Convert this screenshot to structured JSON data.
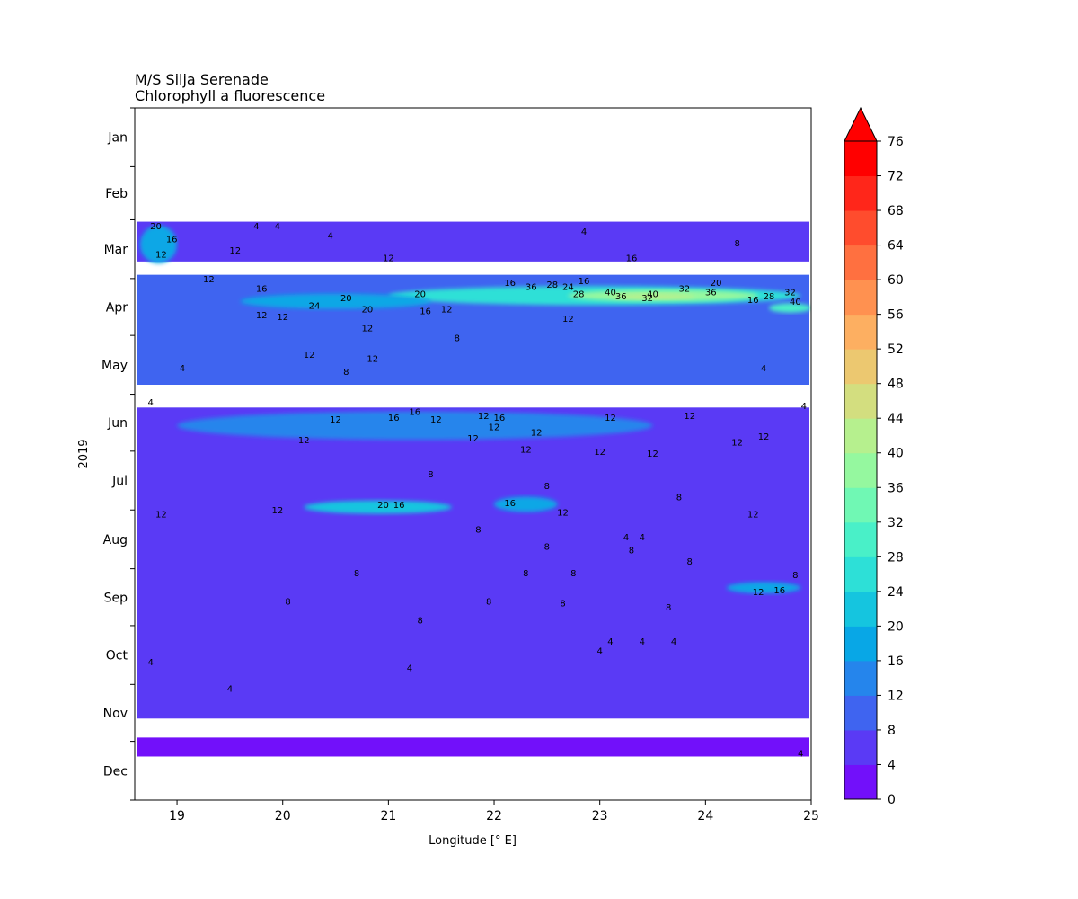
{
  "chart_data": {
    "type": "heatmap",
    "title": "M/S Silja Serenade",
    "subtitle": "Chlorophyll a fluorescence",
    "xlabel": "Longitude [° E]",
    "ylabel": "2019",
    "xlim": [
      18.6,
      25.0
    ],
    "x_ticks": [
      "19",
      "20",
      "21",
      "22",
      "23",
      "24",
      "25"
    ],
    "x_tick_values": [
      19,
      20,
      21,
      22,
      23,
      24,
      25
    ],
    "y_ticks": [
      "Jan",
      "Feb",
      "Mar",
      "Apr",
      "May",
      "Jun",
      "Jul",
      "Aug",
      "Sep",
      "Oct",
      "Nov",
      "Dec"
    ],
    "colorbar": {
      "levels": [
        0,
        4,
        8,
        12,
        16,
        20,
        24,
        28,
        32,
        36,
        40,
        44,
        48,
        52,
        56,
        60,
        64,
        68,
        72,
        76
      ],
      "tick_labels": [
        "0",
        "4",
        "8",
        "12",
        "16",
        "20",
        "24",
        "28",
        "32",
        "36",
        "40",
        "44",
        "48",
        "52",
        "56",
        "60",
        "64",
        "68",
        "72",
        "76"
      ],
      "colors": [
        "#7210fa",
        "#5a3af5",
        "#3f64f0",
        "#2585ec",
        "#08a7e6",
        "#15c5df",
        "#2de0d7",
        "#49f0c8",
        "#70f8b4",
        "#95f89f",
        "#b6f08e",
        "#d3de7f",
        "#ecc870",
        "#fdaf61",
        "#ff9150",
        "#ff7040",
        "#ff4c2d",
        "#ff261a",
        "#ff0000"
      ],
      "extend": "max"
    },
    "data_bands": [
      {
        "from_day": 60,
        "to_day": 81,
        "mean_level": 1
      },
      {
        "from_day": 88,
        "to_day": 146,
        "mean_level": 2
      },
      {
        "from_day": 158,
        "to_day": 322,
        "mean_level": 1
      },
      {
        "from_day": 332,
        "to_day": 342,
        "mean_level": 0
      }
    ],
    "features": [
      {
        "day_from": 94,
        "day_to": 104,
        "lon_from": 21.0,
        "lon_to": 24.9,
        "level": 6
      },
      {
        "day_from": 96,
        "day_to": 102,
        "lon_from": 22.7,
        "lon_to": 24.5,
        "level": 9
      },
      {
        "day_from": 98,
        "day_to": 101,
        "lon_from": 23.1,
        "lon_to": 23.9,
        "level": 10
      },
      {
        "day_from": 98,
        "day_to": 106,
        "lon_from": 19.6,
        "lon_to": 21.4,
        "level": 4
      },
      {
        "day_from": 62,
        "day_to": 82,
        "lon_from": 18.65,
        "lon_to": 19.0,
        "level": 4
      },
      {
        "day_from": 103,
        "day_to": 108,
        "lon_from": 24.6,
        "lon_to": 25.0,
        "level": 7
      },
      {
        "day_from": 160,
        "day_to": 175,
        "lon_from": 19.0,
        "lon_to": 23.5,
        "level": 3
      },
      {
        "day_from": 207,
        "day_to": 214,
        "lon_from": 20.2,
        "lon_to": 21.6,
        "level": 5
      },
      {
        "day_from": 205,
        "day_to": 213,
        "lon_from": 22.0,
        "lon_to": 22.6,
        "level": 4
      },
      {
        "day_from": 250,
        "day_to": 256,
        "lon_from": 24.2,
        "lon_to": 24.9,
        "level": 4
      }
    ],
    "contour_labels": [
      {
        "lon": 18.8,
        "day": 62,
        "text": "20"
      },
      {
        "lon": 19.75,
        "day": 62,
        "text": "4"
      },
      {
        "lon": 19.95,
        "day": 62,
        "text": "4"
      },
      {
        "lon": 20.45,
        "day": 67,
        "text": "4"
      },
      {
        "lon": 18.95,
        "day": 69,
        "text": "16"
      },
      {
        "lon": 19.55,
        "day": 75,
        "text": "12"
      },
      {
        "lon": 18.85,
        "day": 77,
        "text": "12"
      },
      {
        "lon": 21.0,
        "day": 79,
        "text": "12"
      },
      {
        "lon": 22.85,
        "day": 65,
        "text": "4"
      },
      {
        "lon": 23.3,
        "day": 79,
        "text": "16"
      },
      {
        "lon": 24.3,
        "day": 71,
        "text": "8"
      },
      {
        "lon": 19.3,
        "day": 90,
        "text": "12"
      },
      {
        "lon": 19.8,
        "day": 95,
        "text": "16"
      },
      {
        "lon": 20.6,
        "day": 100,
        "text": "20"
      },
      {
        "lon": 20.3,
        "day": 104,
        "text": "24"
      },
      {
        "lon": 20.8,
        "day": 106,
        "text": "20"
      },
      {
        "lon": 21.3,
        "day": 98,
        "text": "20"
      },
      {
        "lon": 22.35,
        "day": 94,
        "text": "36"
      },
      {
        "lon": 22.55,
        "day": 93,
        "text": "28"
      },
      {
        "lon": 22.7,
        "day": 94,
        "text": "24"
      },
      {
        "lon": 22.8,
        "day": 98,
        "text": "28"
      },
      {
        "lon": 23.1,
        "day": 97,
        "text": "40"
      },
      {
        "lon": 23.2,
        "day": 99,
        "text": "36"
      },
      {
        "lon": 23.45,
        "day": 100,
        "text": "32"
      },
      {
        "lon": 23.5,
        "day": 98,
        "text": "40"
      },
      {
        "lon": 23.8,
        "day": 95,
        "text": "32"
      },
      {
        "lon": 24.1,
        "day": 92,
        "text": "20"
      },
      {
        "lon": 24.05,
        "day": 97,
        "text": "36"
      },
      {
        "lon": 24.45,
        "day": 101,
        "text": "16"
      },
      {
        "lon": 24.6,
        "day": 99,
        "text": "28"
      },
      {
        "lon": 24.8,
        "day": 97,
        "text": "32"
      },
      {
        "lon": 24.85,
        "day": 102,
        "text": "40"
      },
      {
        "lon": 22.15,
        "day": 92,
        "text": "16"
      },
      {
        "lon": 22.85,
        "day": 91,
        "text": "16"
      },
      {
        "lon": 21.35,
        "day": 107,
        "text": "16"
      },
      {
        "lon": 21.55,
        "day": 106,
        "text": "12"
      },
      {
        "lon": 19.8,
        "day": 109,
        "text": "12"
      },
      {
        "lon": 20.0,
        "day": 110,
        "text": "12"
      },
      {
        "lon": 22.7,
        "day": 111,
        "text": "12"
      },
      {
        "lon": 21.65,
        "day": 121,
        "text": "8"
      },
      {
        "lon": 20.8,
        "day": 116,
        "text": "12"
      },
      {
        "lon": 20.25,
        "day": 130,
        "text": "12"
      },
      {
        "lon": 20.85,
        "day": 132,
        "text": "12"
      },
      {
        "lon": 19.05,
        "day": 137,
        "text": "4"
      },
      {
        "lon": 20.6,
        "day": 139,
        "text": "8"
      },
      {
        "lon": 24.55,
        "day": 137,
        "text": "4"
      },
      {
        "lon": 21.25,
        "day": 160,
        "text": "16"
      },
      {
        "lon": 20.5,
        "day": 164,
        "text": "12"
      },
      {
        "lon": 21.05,
        "day": 163,
        "text": "16"
      },
      {
        "lon": 21.45,
        "day": 164,
        "text": "12"
      },
      {
        "lon": 21.9,
        "day": 162,
        "text": "12"
      },
      {
        "lon": 22.05,
        "day": 163,
        "text": "16"
      },
      {
        "lon": 22.0,
        "day": 168,
        "text": "12"
      },
      {
        "lon": 23.1,
        "day": 163,
        "text": "12"
      },
      {
        "lon": 23.85,
        "day": 162,
        "text": "12"
      },
      {
        "lon": 22.4,
        "day": 171,
        "text": "12"
      },
      {
        "lon": 21.8,
        "day": 174,
        "text": "12"
      },
      {
        "lon": 20.2,
        "day": 175,
        "text": "12"
      },
      {
        "lon": 22.3,
        "day": 180,
        "text": "12"
      },
      {
        "lon": 23.0,
        "day": 181,
        "text": "12"
      },
      {
        "lon": 23.5,
        "day": 182,
        "text": "12"
      },
      {
        "lon": 24.3,
        "day": 176,
        "text": "12"
      },
      {
        "lon": 24.55,
        "day": 173,
        "text": "12"
      },
      {
        "lon": 20.95,
        "day": 209,
        "text": "20"
      },
      {
        "lon": 21.1,
        "day": 209,
        "text": "16"
      },
      {
        "lon": 22.15,
        "day": 208,
        "text": "16"
      },
      {
        "lon": 19.95,
        "day": 212,
        "text": "12"
      },
      {
        "lon": 18.85,
        "day": 214,
        "text": "12"
      },
      {
        "lon": 22.65,
        "day": 213,
        "text": "12"
      },
      {
        "lon": 24.45,
        "day": 214,
        "text": "12"
      },
      {
        "lon": 24.5,
        "day": 255,
        "text": "12"
      },
      {
        "lon": 24.7,
        "day": 254,
        "text": "16"
      },
      {
        "lon": 18.75,
        "day": 155,
        "text": "4"
      },
      {
        "lon": 24.93,
        "day": 157,
        "text": "4"
      },
      {
        "lon": 23.25,
        "day": 226,
        "text": "4"
      },
      {
        "lon": 23.4,
        "day": 226,
        "text": "4"
      },
      {
        "lon": 23.1,
        "day": 281,
        "text": "4"
      },
      {
        "lon": 23.4,
        "day": 281,
        "text": "4"
      },
      {
        "lon": 23.7,
        "day": 281,
        "text": "4"
      },
      {
        "lon": 23.0,
        "day": 286,
        "text": "4"
      },
      {
        "lon": 18.75,
        "day": 292,
        "text": "4"
      },
      {
        "lon": 21.2,
        "day": 295,
        "text": "4"
      },
      {
        "lon": 19.5,
        "day": 306,
        "text": "4"
      },
      {
        "lon": 24.9,
        "day": 340,
        "text": "4"
      },
      {
        "lon": 21.4,
        "day": 193,
        "text": "8"
      },
      {
        "lon": 22.5,
        "day": 199,
        "text": "8"
      },
      {
        "lon": 23.75,
        "day": 205,
        "text": "8"
      },
      {
        "lon": 21.85,
        "day": 222,
        "text": "8"
      },
      {
        "lon": 22.5,
        "day": 231,
        "text": "8"
      },
      {
        "lon": 23.3,
        "day": 233,
        "text": "8"
      },
      {
        "lon": 20.7,
        "day": 245,
        "text": "8"
      },
      {
        "lon": 22.3,
        "day": 245,
        "text": "8"
      },
      {
        "lon": 22.75,
        "day": 245,
        "text": "8"
      },
      {
        "lon": 23.85,
        "day": 239,
        "text": "8"
      },
      {
        "lon": 21.95,
        "day": 260,
        "text": "8"
      },
      {
        "lon": 22.65,
        "day": 261,
        "text": "8"
      },
      {
        "lon": 20.05,
        "day": 260,
        "text": "8"
      },
      {
        "lon": 21.3,
        "day": 270,
        "text": "8"
      },
      {
        "lon": 23.65,
        "day": 263,
        "text": "8"
      },
      {
        "lon": 24.85,
        "day": 246,
        "text": "8"
      }
    ]
  }
}
